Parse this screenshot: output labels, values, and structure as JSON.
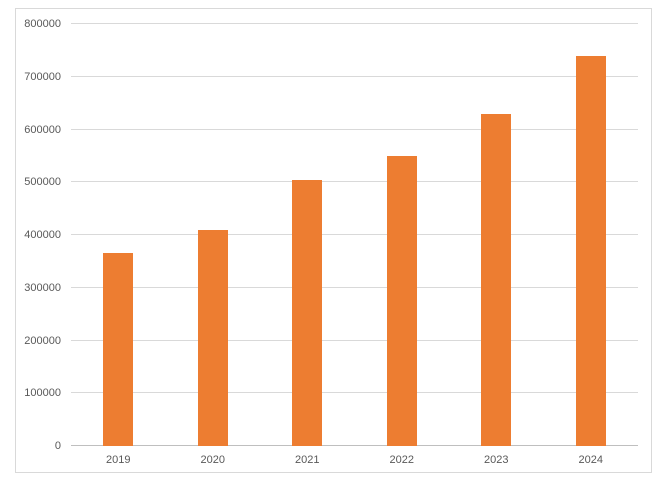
{
  "chart_data": {
    "type": "bar",
    "title": "",
    "xlabel": "",
    "ylabel": "",
    "categories": [
      "2019",
      "2020",
      "2021",
      "2022",
      "2023",
      "2024"
    ],
    "values": [
      365000,
      410000,
      505000,
      550000,
      630000,
      740000
    ],
    "ylim": [
      0,
      800000
    ],
    "ytick_step": 100000,
    "ytick_labels": [
      "0",
      "100000",
      "200000",
      "300000",
      "400000",
      "500000",
      "600000",
      "700000",
      "800000"
    ],
    "grid": true,
    "legend": false,
    "colors": {
      "bar": "#ED7D31",
      "gridline": "#D9D9D9",
      "axis_line": "#BFBFBF",
      "tick_label": "#595959",
      "frame_border": "#D9D9D9",
      "background": "#FFFFFF"
    }
  }
}
